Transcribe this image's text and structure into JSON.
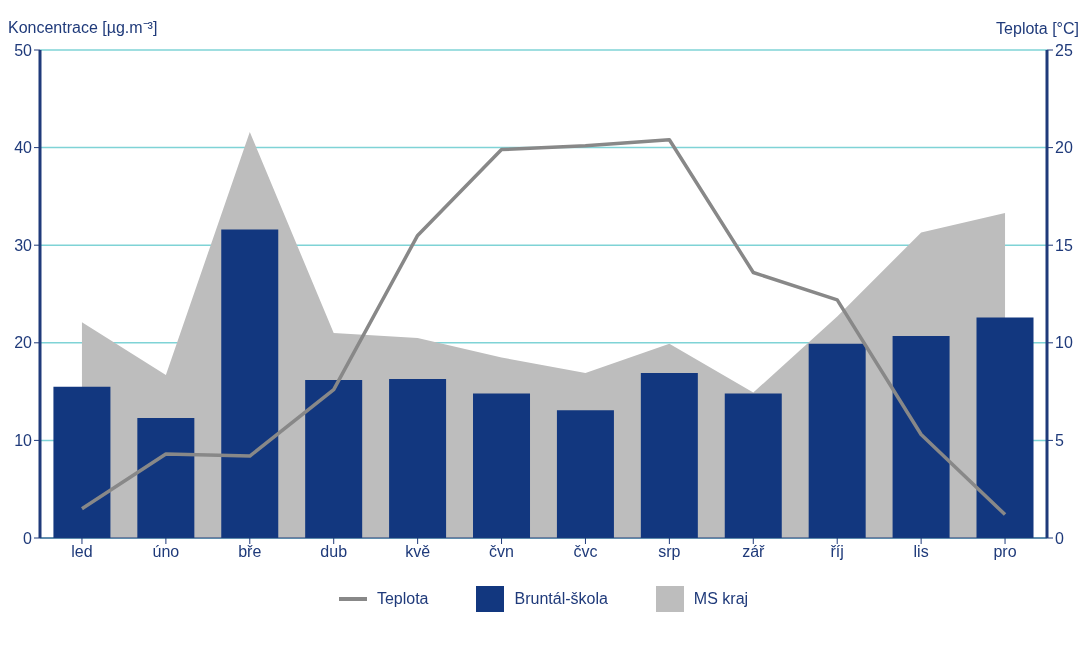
{
  "chart_data": {
    "type": "bar",
    "ylabel": "Koncentrace [µg.m⁻³]",
    "y2label": "Teplota [°C]",
    "categories": [
      "led",
      "úno",
      "bře",
      "dub",
      "kvě",
      "čvn",
      "čvc",
      "srp",
      "zář",
      "říj",
      "lis",
      "pro"
    ],
    "series": [
      {
        "name": "Teplota",
        "type": "line",
        "axis": "y2",
        "color": "#888888",
        "values": [
          1.5,
          4.3,
          4.2,
          7.6,
          15.5,
          19.9,
          20.1,
          20.4,
          13.6,
          12.2,
          5.3,
          1.2
        ]
      },
      {
        "name": "Bruntál-škola",
        "color": "#12377f",
        "values": [
          15.5,
          12.3,
          31.6,
          16.2,
          16.3,
          14.8,
          13.1,
          16.9,
          14.8,
          19.9,
          20.7,
          22.6
        ]
      },
      {
        "name": "MS kraj",
        "type": "area",
        "color": "#bdbdbd",
        "values": [
          22.1,
          16.7,
          41.6,
          21.0,
          20.5,
          18.5,
          16.9,
          19.9,
          14.9,
          22.7,
          31.3,
          33.3
        ]
      }
    ],
    "ylim": [
      0,
      50
    ],
    "yticks": [
      0,
      10,
      20,
      30,
      40,
      50
    ],
    "y2lim": [
      0,
      25
    ],
    "y2ticks": [
      0,
      5,
      10,
      15,
      20,
      25
    ],
    "grid": "y",
    "legend": "bottom",
    "marker": "none",
    "line_style": "solid"
  }
}
